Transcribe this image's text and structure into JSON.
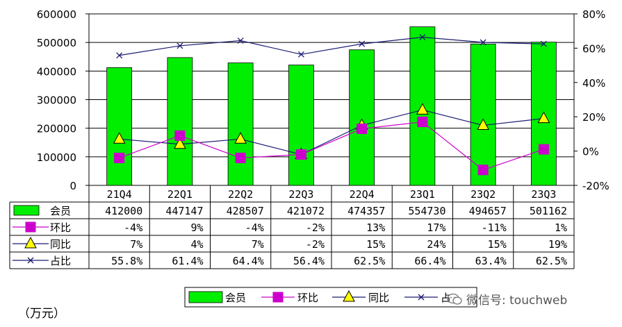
{
  "chart_data": {
    "type": "bar",
    "categories": [
      "21Q4",
      "22Q1",
      "22Q2",
      "22Q3",
      "22Q4",
      "23Q1",
      "23Q2",
      "23Q3"
    ],
    "series": [
      {
        "name": "会员",
        "type": "bar",
        "axis": "left",
        "color": "#00ee00",
        "values": [
          412000,
          447147,
          428507,
          421072,
          474357,
          554730,
          494657,
          501162
        ],
        "labels": [
          "412000",
          "447147",
          "428507",
          "421072",
          "474357",
          "554730",
          "494657",
          "501162"
        ]
      },
      {
        "name": "环比",
        "type": "line",
        "axis": "right",
        "color": "#cc00cc",
        "marker": "square",
        "values": [
          -4,
          9,
          -4,
          -2,
          13,
          17,
          -11,
          1
        ],
        "labels": [
          "-4%",
          "9%",
          "-4%",
          "-2%",
          "13%",
          "17%",
          "-11%",
          "1%"
        ]
      },
      {
        "name": "同比",
        "type": "line",
        "axis": "right",
        "color": "#1a1a70",
        "marker": "triangle",
        "values": [
          7,
          4,
          7,
          -2,
          15,
          24,
          15,
          19
        ],
        "labels": [
          "7%",
          "4%",
          "7%",
          "-2%",
          "15%",
          "24%",
          "15%",
          "19%"
        ]
      },
      {
        "name": "占比",
        "type": "line",
        "axis": "right",
        "color": "#1a1a70",
        "marker": "x",
        "values": [
          55.8,
          61.4,
          64.4,
          56.4,
          62.5,
          66.4,
          63.4,
          62.5
        ],
        "labels": [
          "55.8%",
          "61.4%",
          "64.4%",
          "56.4%",
          "62.5%",
          "66.4%",
          "63.4%",
          "62.5%"
        ]
      }
    ],
    "ylim": [
      0,
      600000
    ],
    "yticks": [
      "0",
      "100000",
      "200000",
      "300000",
      "400000",
      "500000",
      "600000"
    ],
    "y2lim": [
      -20,
      80
    ],
    "y2ticks": [
      "-20%",
      "0%",
      "20%",
      "40%",
      "60%",
      "80%"
    ],
    "legend_position": "bottom",
    "legend_labels": [
      "会员",
      "环比",
      "同比",
      "占"
    ],
    "grid": true,
    "unit_label": "（万元）"
  },
  "watermark": {
    "text": "微信号: touchweb",
    "icon": "wechat-icon"
  }
}
